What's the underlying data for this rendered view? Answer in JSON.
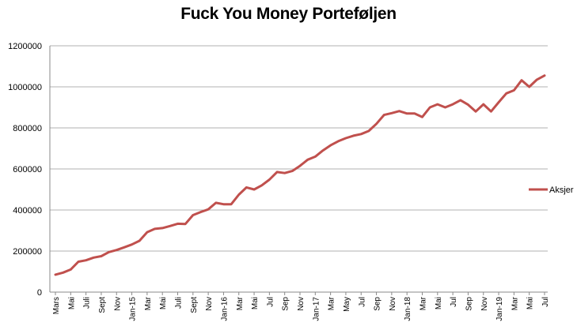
{
  "chart_data": {
    "type": "line",
    "title": "Fuck You Money Porteføljen",
    "xlabel": "",
    "ylabel": "",
    "ylim": [
      0,
      1200000
    ],
    "yticks": [
      "0",
      "200000",
      "400000",
      "600000",
      "800000",
      "1000000",
      "1200000"
    ],
    "grid": true,
    "legend": "right",
    "x_labels": [
      "Mars",
      "Mai",
      "Juli",
      "Sept",
      "Nov",
      "Jan-15",
      "Mar",
      "Mai",
      "Juli",
      "Sept",
      "Nov",
      "Jan-16",
      "Mar",
      "Mai",
      "Jul",
      "Sep",
      "Nov",
      "Jan-17",
      "Mar",
      "May",
      "Jul",
      "Sep",
      "Nov",
      "Jan-18",
      "Mar",
      "Mai",
      "Jul",
      "Sep",
      "Nov",
      "Jan-19",
      "Mar",
      "Mai",
      "Jul"
    ],
    "series": [
      {
        "name": "Aksjer",
        "color": "#c0504d",
        "values": [
          85000,
          95000,
          110000,
          148000,
          155000,
          168000,
          175000,
          195000,
          205000,
          218000,
          232000,
          250000,
          292000,
          308000,
          312000,
          322000,
          333000,
          332000,
          375000,
          390000,
          403000,
          435000,
          428000,
          428000,
          475000,
          510000,
          500000,
          520000,
          548000,
          585000,
          580000,
          590000,
          615000,
          645000,
          660000,
          690000,
          715000,
          735000,
          750000,
          762000,
          770000,
          785000,
          820000,
          863000,
          872000,
          882000,
          870000,
          870000,
          853000,
          900000,
          915000,
          900000,
          915000,
          935000,
          913000,
          880000,
          915000,
          880000,
          925000,
          968000,
          983000,
          1032000,
          1000000,
          1035000,
          1055000
        ]
      }
    ]
  }
}
